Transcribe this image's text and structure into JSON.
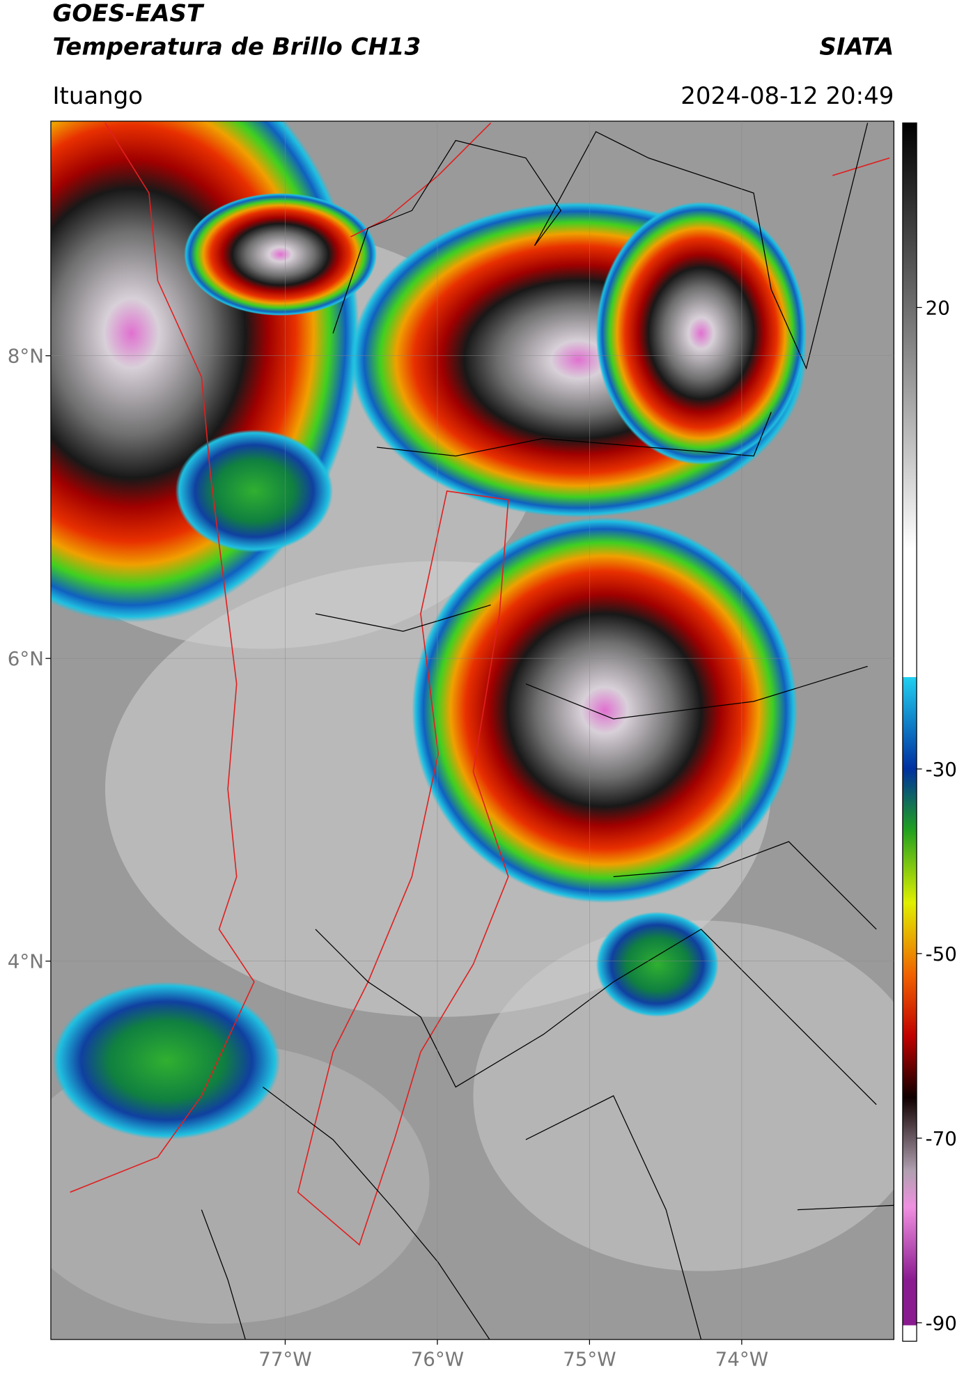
{
  "header": {
    "title": "GOES-EAST",
    "subtitle": "Temperatura de Brillo CH13",
    "brand": "SIATA",
    "location": "Ituango",
    "datetime": "2024-08-12 20:49"
  },
  "map": {
    "xlim": [
      -78.54,
      -73.0
    ],
    "ylim": [
      1.5,
      9.55
    ],
    "xticks": [
      {
        "value": -77,
        "label": "77°W"
      },
      {
        "value": -76,
        "label": "76°W"
      },
      {
        "value": -75,
        "label": "75°W"
      },
      {
        "value": -74,
        "label": "74°W"
      }
    ],
    "yticks": [
      {
        "value": 8,
        "label": "8°N"
      },
      {
        "value": 6,
        "label": "6°N"
      },
      {
        "value": 4,
        "label": "4°N"
      }
    ],
    "grid": true
  },
  "colorbar": {
    "lim": [
      -92,
      40
    ],
    "ticks": [
      20,
      -30,
      -50,
      -70,
      -90
    ]
  }
}
